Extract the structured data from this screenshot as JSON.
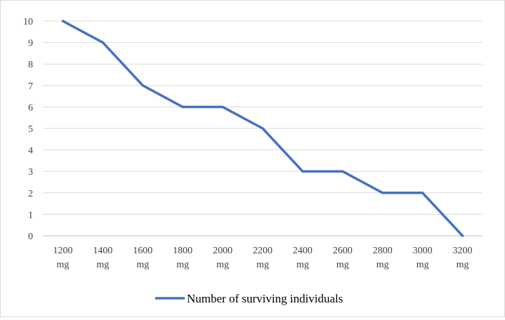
{
  "chart_data": {
    "type": "line",
    "categories": [
      [
        "1200",
        "mg"
      ],
      [
        "1400",
        "mg"
      ],
      [
        "1600",
        "mg"
      ],
      [
        "1800",
        "mg"
      ],
      [
        "2000",
        "mg"
      ],
      [
        "2200",
        "mg"
      ],
      [
        "2400",
        "mg"
      ],
      [
        "2600",
        "mg"
      ],
      [
        "2800",
        "mg"
      ],
      [
        "3000",
        "mg"
      ],
      [
        "3200",
        "mg"
      ]
    ],
    "series": [
      {
        "name": "Number of surviving individuals",
        "values": [
          10,
          9,
          7,
          6,
          6,
          5,
          3,
          3,
          2,
          2,
          0
        ],
        "color": "#4472c4"
      }
    ],
    "yticks": [
      "0",
      "1",
      "2",
      "3",
      "4",
      "5",
      "6",
      "7",
      "8",
      "9",
      "10"
    ],
    "ylim": [
      0,
      10
    ],
    "grid": true,
    "legend_position": "bottom"
  }
}
